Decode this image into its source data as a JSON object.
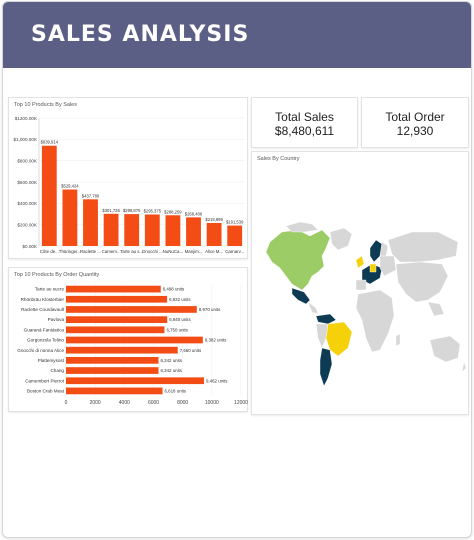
{
  "header": {
    "title": "SALES ANALYSIS"
  },
  "kpis": {
    "total_sales_label": "Total Sales",
    "total_sales_value": "$8,480,611",
    "total_order_label": "Total Order",
    "total_order_value": "12,930"
  },
  "map": {
    "title": "Sales By Country"
  },
  "colors": {
    "header": "#5b5f86",
    "bar": "#f34c15",
    "accent_green": "#9ccc65",
    "accent_yellow": "#f5d10a",
    "accent_navy": "#0d3b54"
  },
  "chart_data": [
    {
      "type": "bar",
      "title": "Top 10 Products By Sales",
      "categories": [
        "Côte de...",
        "Thüringer...",
        "Raclette ...",
        "Camem...",
        "Tarte au s...",
        "Gnocchi ...",
        "NuNuCa...",
        "Manjim...",
        "Alice M...",
        "Carnarv..."
      ],
      "values": [
        939914,
        529424,
        437780,
        301726,
        298875,
        295375,
        288259,
        268406,
        215899,
        191539
      ],
      "data_labels": [
        "$939,914",
        "$529,424",
        "$437,780",
        "$301,726",
        "$298,875",
        "$295,375",
        "$288,259",
        "$268,406",
        "$215,899",
        "$191,539"
      ],
      "yticks": [
        "$0.00K",
        "$200.00K",
        "$400.00K",
        "$600.00K",
        "$800.00K",
        "$1,000.00K",
        "$1200.00K"
      ],
      "ylim": [
        0,
        1200000
      ]
    },
    {
      "type": "bar",
      "orientation": "horizontal",
      "title": "Top 10 Products By Order Quantity",
      "categories": [
        "Tarte au sucre",
        "Rhönbräu Klosterbier",
        "Raclette Courdavault",
        "Pavlova",
        "Guaraná Fantástica",
        "Gorgonzola Telino",
        "Gnocchi di nonna Alice",
        "Plattemysost",
        "Chang",
        "Camembert Pierrot",
        "Boston Crab Meat"
      ],
      "values": [
        6498,
        6932,
        8970,
        6940,
        6750,
        9382,
        7660,
        6342,
        6342,
        9462,
        6618
      ],
      "data_labels": [
        "6,498 units",
        "6,932 units",
        "8,970 units",
        "6,940 units",
        "6,750 units",
        "9,382 units",
        "7,660 units",
        "6,342 units",
        "6,342 units",
        "9,462 units",
        "6,618 units"
      ],
      "xticks": [
        "0",
        "2000",
        "4000",
        "6000",
        "8000",
        "10000",
        "12000"
      ],
      "xlim": [
        0,
        12000
      ]
    }
  ]
}
